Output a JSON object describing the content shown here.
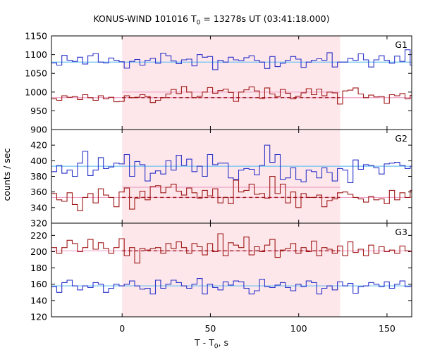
{
  "chart_data": {
    "type": "line",
    "title_main": "KONUS-WIND 101016 T",
    "title_sub": "0",
    "title_rest": " = 13278s UT (03:41:18.000)",
    "xlabel_main": "T - T",
    "xlabel_sub": "0",
    "xlabel_rest": ", s",
    "ylabel": "counts / sec",
    "xlim": [
      -40,
      164
    ],
    "xticks": [
      0,
      50,
      100,
      150
    ],
    "xtick_labels": [
      "0",
      "50",
      "100",
      "150"
    ],
    "highlight_interval": [
      0,
      123.5
    ],
    "colors": {
      "blue": "#2b33c9",
      "red": "#a01818",
      "lightblue": "#6fc3f2",
      "pink": "#f0a2c8",
      "highlight": "#fde7ea"
    },
    "bin_width": 2.944,
    "x_start": -40,
    "panels": [
      {
        "label": "G1",
        "ylim": [
          900,
          1150
        ],
        "yticks": [
          900,
          950,
          1000,
          1050,
          1100,
          1150
        ],
        "ytick_labels": [
          "900",
          "950",
          "1000",
          "1050",
          "1100",
          "1150"
        ],
        "blue_background": 1080,
        "red_background": 985,
        "red_mean_interval": 1000,
        "series": [
          {
            "color": "blue",
            "values": [
              1078,
              1072,
              1098,
              1085,
              1082,
              1093,
              1075,
              1097,
              1103,
              1080,
              1078,
              1091,
              1085,
              1081,
              1064,
              1082,
              1087,
              1072,
              1085,
              1090,
              1077,
              1104,
              1097,
              1083,
              1076,
              1086,
              1088,
              1070,
              1100,
              1093,
              1095,
              1060,
              1085,
              1080,
              1093,
              1086,
              1084,
              1092,
              1097,
              1085,
              1080,
              1063,
              1095,
              1068,
              1077,
              1085,
              1095,
              1088,
              1066,
              1080,
              1085,
              1089,
              1085,
              1105,
              1067,
              1080,
              1080,
              1090,
              1085,
              1102,
              1086,
              1067,
              1086,
              1097,
              1085,
              1077,
              1096,
              1082,
              1113,
              1072
            ]
          },
          {
            "color": "red",
            "values": [
              982,
              978,
              990,
              986,
              988,
              980,
              993,
              985,
              978,
              990,
              982,
              986,
              974,
              975,
              990,
              985,
              986,
              993,
              988,
              972,
              978,
              985,
              995,
              1007,
              996,
              1015,
              1000,
              985,
              989,
              1000,
              1012,
              997,
              1004,
              1008,
              999,
              975,
              1000,
              1006,
              1014,
              1003,
              983,
              1011,
              995,
              988,
              1007,
              997,
              982,
              989,
              998,
              1009,
              993,
              1008,
              990,
              1000,
              998,
              968,
              1003,
              1005,
              1011,
              995,
              985,
              992,
              987,
              988,
              970,
              993,
              990,
              996,
              982,
              991
            ]
          }
        ]
      },
      {
        "label": "G2",
        "ylim": [
          320,
          440
        ],
        "yticks": [
          320,
          340,
          360,
          380,
          400,
          420
        ],
        "ytick_labels": [
          "320",
          "340",
          "360",
          "380",
          "400",
          "420"
        ],
        "blue_background": 393,
        "red_background": 353,
        "red_mean_interval": 366,
        "series": [
          {
            "color": "blue",
            "values": [
              386,
              394,
              384,
              388,
              380,
              397,
              412,
              381,
              388,
              404,
              390,
              392,
              397,
              396,
              408,
              380,
              399,
              395,
              374,
              384,
              387,
              383,
              400,
              388,
              407,
              394,
              402,
              386,
              393,
              380,
              408,
              395,
              397,
              397,
              378,
              376,
              388,
              390,
              389,
              382,
              394,
              420,
              398,
              408,
              376,
              378,
              391,
              376,
              373,
              388,
              386,
              378,
              391,
              385,
              374,
              390,
              388,
              372,
              401,
              389,
              395,
              394,
              391,
              383,
              396,
              397,
              398,
              394,
              390,
              393
            ]
          },
          {
            "color": "red",
            "values": [
              358,
              350,
              348,
              359,
              344,
              336,
              353,
              358,
              346,
              364,
              356,
              353,
              341,
              360,
              365,
              338,
              352,
              361,
              350,
              367,
              368,
              359,
              366,
              370,
              361,
              356,
              365,
              359,
              352,
              362,
              355,
              364,
              346,
              353,
              345,
              375,
              360,
              362,
              370,
              357,
              358,
              352,
              380,
              358,
              370,
              346,
              360,
              340,
              358,
              353,
              353,
              356,
              341,
              349,
              351,
              359,
              360,
              357,
              353,
              351,
              347,
              354,
              350,
              351,
              345,
              362,
              350,
              359,
              353,
              362
            ]
          }
        ]
      },
      {
        "label": "G3",
        "ylim": [
          120,
          235
        ],
        "yticks": [
          120,
          140,
          160,
          180,
          200,
          220
        ],
        "ytick_labels": [
          "120",
          "140",
          "160",
          "180",
          "200",
          "220"
        ],
        "blue_background": 158,
        "red_background": 201,
        "red_mean_interval": 201,
        "series": [
          {
            "color": "blue",
            "values": [
              157,
              150,
              162,
              165,
              158,
              153,
              158,
              156,
              162,
              160,
              150,
              155,
              160,
              158,
              160,
              164,
              158,
              154,
              155,
              148,
              165,
              155,
              160,
              165,
              162,
              158,
              155,
              160,
              167,
              148,
              160,
              156,
              153,
              163,
              159,
              164,
              163,
              155,
              148,
              152,
              166,
              157,
              156,
              159,
              162,
              156,
              152,
              160,
              157,
              164,
              162,
              148,
              155,
              158,
              153,
              163,
              158,
              161,
              149,
              157,
              158,
              162,
              160,
              157,
              163,
              155,
              160,
              164,
              157,
              158
            ]
          },
          {
            "color": "red",
            "values": [
              205,
              198,
              205,
              214,
              210,
              200,
              205,
              215,
              203,
              211,
              204,
              198,
              205,
              216,
              195,
              205,
              186,
              204,
              202,
              204,
              205,
              198,
              210,
              204,
              212,
              205,
              198,
              210,
              206,
              196,
              210,
              200,
              222,
              195,
              211,
              208,
              205,
              218,
              196,
              206,
              200,
              208,
              215,
              193,
              202,
              204,
              210,
              198,
              205,
              200,
              213,
              195,
              205,
              203,
              198,
              207,
              195,
              212,
              199,
              203,
              195,
              208,
              198,
              206,
              200,
              202,
              198,
              207,
              201,
              200
            ]
          }
        ]
      }
    ]
  }
}
